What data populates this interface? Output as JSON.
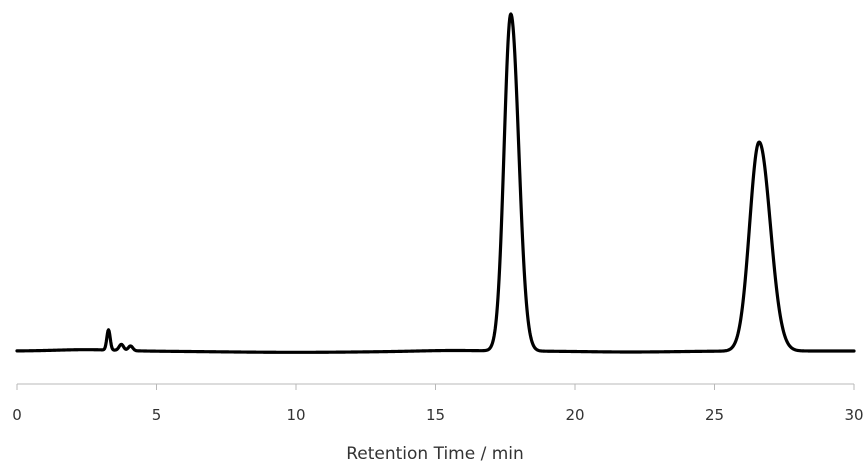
{
  "chart_data": {
    "type": "line",
    "title": "",
    "xlabel": "Retention Time / min",
    "ylabel": "",
    "xlim": [
      0,
      30
    ],
    "ylim": [
      0,
      1.0
    ],
    "x_ticks": [
      "0",
      "5",
      "10",
      "15",
      "20",
      "25",
      "30"
    ],
    "grid": false,
    "y_axis_visible": false,
    "line_color": "#000000",
    "baseline": 0.006,
    "peaks": [
      {
        "center": 3.28,
        "height": 0.06,
        "width": 0.06
      },
      {
        "center": 3.74,
        "height": 0.018,
        "width": 0.08
      },
      {
        "center": 4.07,
        "height": 0.014,
        "width": 0.08
      },
      {
        "center": 17.7,
        "height": 1.0,
        "width": 0.24
      },
      {
        "center": 26.6,
        "height": 0.62,
        "width": 0.34
      }
    ],
    "series": [
      {
        "x": [
          0,
          2,
          3,
          3.2,
          3.28,
          3.35,
          3.5,
          3.74,
          3.9,
          4.07,
          4.3,
          5,
          7,
          10,
          13,
          15,
          16.8,
          17.2,
          17.5,
          17.7,
          17.9,
          18.2,
          18.6,
          19,
          20,
          22,
          24,
          25.6,
          26.1,
          26.4,
          26.6,
          26.85,
          27.2,
          27.6,
          28,
          29,
          30
        ],
        "y": [
          0.006,
          0.009,
          0.01,
          0.011,
          0.06,
          0.012,
          0.006,
          0.018,
          0.008,
          0.014,
          0.007,
          0.005,
          0.002,
          0.001,
          0.002,
          0.004,
          0.01,
          0.4,
          0.87,
          1.0,
          0.87,
          0.45,
          0.07,
          0.012,
          0.002,
          0.001,
          0.003,
          0.008,
          0.35,
          0.56,
          0.62,
          0.56,
          0.28,
          0.07,
          0.02,
          0.004,
          0.002
        ]
      }
    ]
  }
}
